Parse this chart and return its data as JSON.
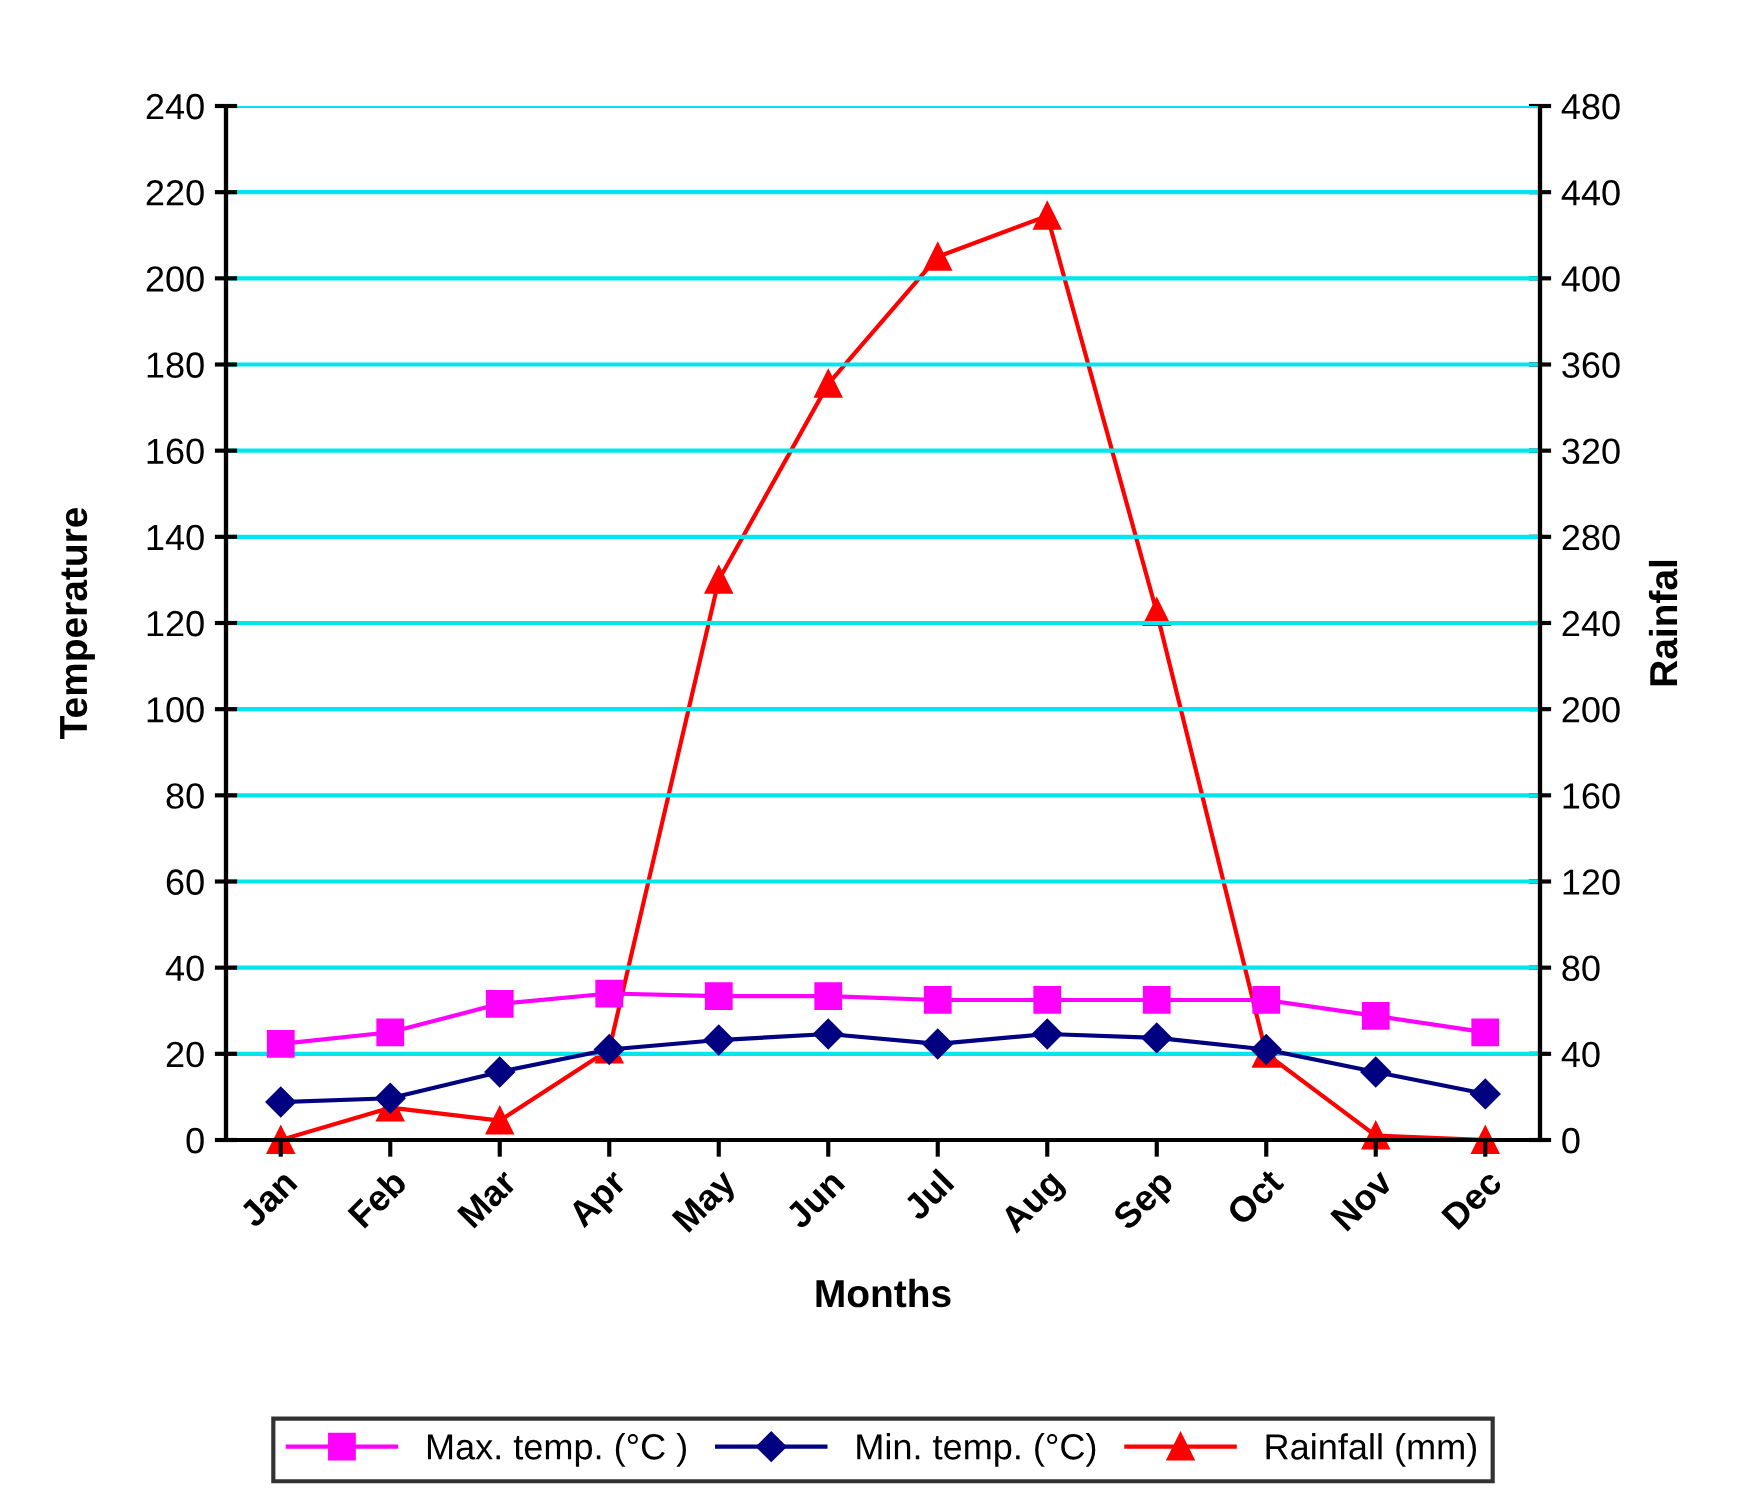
{
  "chart_data": {
    "type": "line",
    "xlabel": "Months",
    "ylabel": "Temperature",
    "y2label": "Rainfal",
    "categories": [
      "Jan",
      "Feb",
      "Mar",
      "Apr",
      "May",
      "Jun",
      "Jul",
      "Aug",
      "Sep",
      "Oct",
      "Nov",
      "Dec"
    ],
    "series": [
      {
        "name": "Max. temp. (°C )",
        "color": "#ff00ff",
        "marker": "square",
        "values": [
          22.3,
          25,
          31.6,
          34,
          33.4,
          33.4,
          32.5,
          32.5,
          32.5,
          32.5,
          28.8,
          25
        ]
      },
      {
        "name": "Min. temp. (°C)",
        "color": "#000080",
        "marker": "diamond",
        "values": [
          8.8,
          9.7,
          15.8,
          21,
          23.2,
          24.6,
          22.3,
          24.6,
          23.7,
          21,
          15.8,
          10.7
        ]
      },
      {
        "name": "Rainfall (mm)",
        "color": "#ff0000",
        "marker": "triangle",
        "axis": "y2",
        "values": [
          0,
          15,
          9,
          42,
          260,
          351,
          410,
          429,
          245,
          40,
          2,
          0
        ]
      }
    ],
    "ylim": [
      0,
      240
    ],
    "yticks": [
      0,
      20,
      40,
      60,
      80,
      100,
      120,
      140,
      160,
      180,
      200,
      220,
      240
    ],
    "y2lim": [
      0,
      480
    ],
    "y2ticks": [
      0,
      40,
      80,
      120,
      160,
      200,
      240,
      280,
      320,
      360,
      400,
      440,
      480
    ],
    "grid": "y",
    "legend": "bottom",
    "line_style": "solid"
  }
}
